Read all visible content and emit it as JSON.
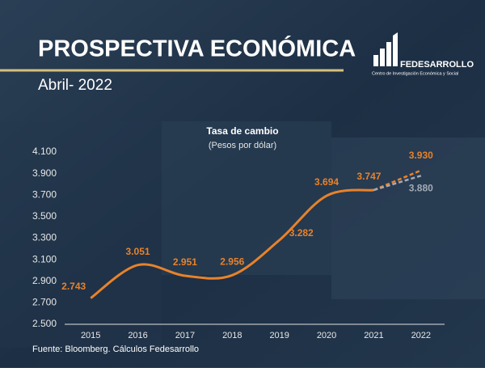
{
  "slide": {
    "title": "PROSPECTIVA ECONÓMICA",
    "date": "Abril- 2022",
    "logo": {
      "name": "FEDESARROLLO",
      "tagline": "Centro de Investigación Económica y Social"
    }
  },
  "chart_data": {
    "type": "line",
    "title": "Tasa de cambio",
    "subtitle": "(Pesos por dólar)",
    "source": "Fuente: Bloomberg. Cálculos Fedesarrollo",
    "categories": [
      "2015",
      "2016",
      "2017",
      "2018",
      "2019",
      "2020",
      "2021",
      "2022"
    ],
    "series": [
      {
        "color": "#e8822a",
        "style": "solid",
        "values": [
          2.743,
          3.051,
          2.951,
          2.956,
          3.282,
          3.694,
          3.747,
          null
        ],
        "value_labels": [
          "2.743",
          "3.051",
          "2.951",
          "2.956",
          "3.282",
          "3.694",
          "3.747",
          null
        ]
      },
      {
        "color": "#e8822a",
        "style": "dashed",
        "values": [
          null,
          null,
          null,
          null,
          null,
          null,
          3.747,
          3.93
        ],
        "value_labels": [
          null,
          null,
          null,
          null,
          null,
          null,
          null,
          "3.930"
        ]
      },
      {
        "color": "#a3abb5",
        "style": "dashed",
        "values": [
          null,
          null,
          null,
          null,
          null,
          null,
          3.747,
          3.88
        ],
        "value_labels": [
          null,
          null,
          null,
          null,
          null,
          null,
          null,
          "3.880"
        ]
      }
    ],
    "ylim": [
      2.5,
      4.1
    ],
    "yticks": [
      {
        "value": 2.5,
        "label": "2.500"
      },
      {
        "value": 2.7,
        "label": "2.700"
      },
      {
        "value": 2.9,
        "label": "2.900"
      },
      {
        "value": 3.1,
        "label": "3.100"
      },
      {
        "value": 3.3,
        "label": "3.300"
      },
      {
        "value": 3.5,
        "label": "3.500"
      },
      {
        "value": 3.7,
        "label": "3.700"
      },
      {
        "value": 3.9,
        "label": "3.900"
      },
      {
        "value": 4.1,
        "label": "4.100"
      }
    ],
    "grid": false
  }
}
